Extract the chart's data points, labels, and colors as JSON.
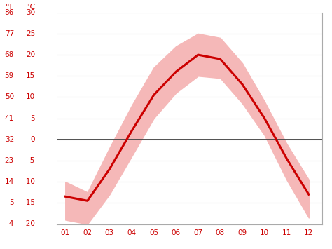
{
  "months": [
    1,
    2,
    3,
    4,
    5,
    6,
    7,
    8,
    9,
    10,
    11,
    12
  ],
  "month_labels": [
    "01",
    "02",
    "03",
    "04",
    "05",
    "06",
    "07",
    "08",
    "09",
    "10",
    "11",
    "12"
  ],
  "mean_temp": [
    -13.5,
    -14.5,
    -7.0,
    2.0,
    10.5,
    16.0,
    20.0,
    19.0,
    13.0,
    5.0,
    -4.5,
    -13.0
  ],
  "temp_max": [
    -10.0,
    -12.5,
    -2.0,
    8.0,
    17.0,
    22.0,
    25.0,
    24.0,
    18.0,
    9.0,
    -1.0,
    -9.5
  ],
  "temp_min": [
    -19.0,
    -20.0,
    -13.0,
    -4.0,
    5.0,
    11.0,
    15.0,
    14.5,
    8.5,
    1.0,
    -9.5,
    -18.5
  ],
  "ylim_c": [
    -20,
    30
  ],
  "yticks_c": [
    -20,
    -15,
    -10,
    -5,
    0,
    5,
    10,
    15,
    20,
    25,
    30
  ],
  "yticks_f": [
    -4,
    5,
    14,
    23,
    32,
    41,
    50,
    59,
    68,
    77,
    86
  ],
  "zero_line_color": "#444444",
  "line_color": "#cc0000",
  "fill_color": "#f5b8b8",
  "grid_color": "#cccccc",
  "label_color": "#cc0000",
  "background_color": "#ffffff",
  "spine_color": "#aaaaaa"
}
